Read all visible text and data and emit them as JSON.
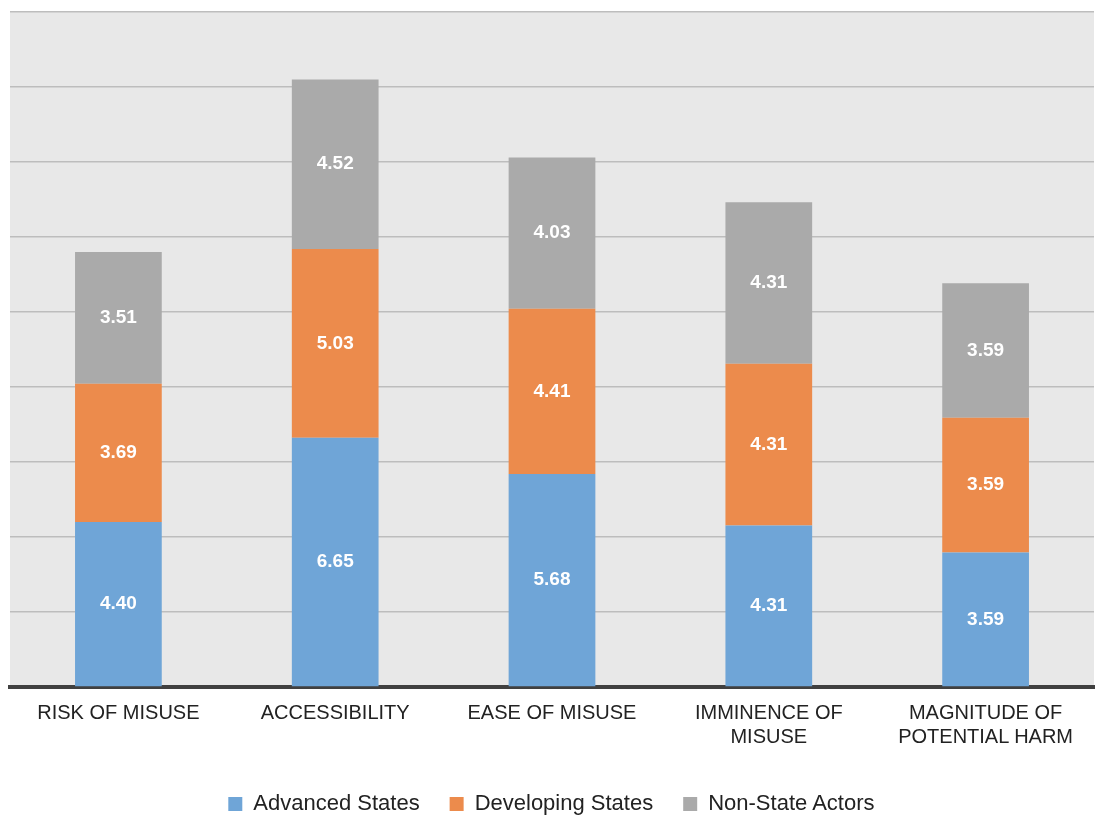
{
  "chart_data": {
    "type": "bar",
    "stacked": true,
    "categories": [
      "RISK OF MISUSE",
      "ACCESSIBILITY",
      "EASE OF MISUSE",
      "IMMINENCE OF MISUSE",
      "MAGNITUDE OF POTENTIAL HARM"
    ],
    "series": [
      {
        "name": "Advanced States",
        "color": "#6fa5d7",
        "values": [
          4.4,
          6.65,
          5.68,
          4.31,
          3.59
        ],
        "value_labels": [
          "4.40",
          "6.65",
          "5.68",
          "4.31",
          "3.59"
        ]
      },
      {
        "name": "Developing States",
        "color": "#ec8b4c",
        "values": [
          3.69,
          5.03,
          4.41,
          4.31,
          3.59
        ],
        "value_labels": [
          "3.69",
          "5.03",
          "4.41",
          "4.31",
          "3.59"
        ]
      },
      {
        "name": "Non-State Actors",
        "color": "#aaaaaa",
        "values": [
          3.51,
          4.52,
          4.03,
          4.31,
          3.59
        ],
        "value_labels": [
          "3.51",
          "4.52",
          "4.03",
          "4.31",
          "3.59"
        ]
      }
    ],
    "ylim": [
      0,
      18
    ],
    "yticks": [
      {
        "value": 0,
        "label": null
      },
      {
        "value": 2,
        "label": null
      },
      {
        "value": 4,
        "label": null
      },
      {
        "value": 6,
        "label": null
      },
      {
        "value": 8,
        "label": null
      },
      {
        "value": 10,
        "label": null
      },
      {
        "value": 12,
        "label": null
      },
      {
        "value": 14,
        "label": null
      },
      {
        "value": 16,
        "label": null
      },
      {
        "value": 18,
        "label": null
      }
    ],
    "tick_labels": "x",
    "grid": "y",
    "legend": "bottom"
  }
}
